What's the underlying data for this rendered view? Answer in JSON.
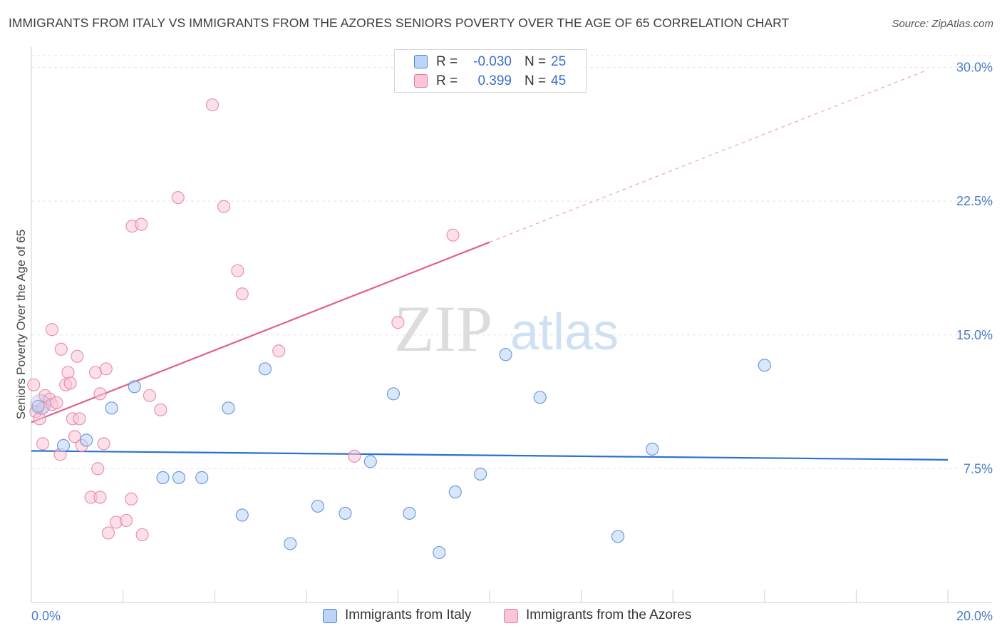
{
  "header": {
    "title": "IMMIGRANTS FROM ITALY VS IMMIGRANTS FROM THE AZORES SENIORS POVERTY OVER THE AGE OF 65 CORRELATION CHART",
    "source": "Source: ZipAtlas.com"
  },
  "watermark": {
    "zip": "ZIP",
    "atlas": "atlas"
  },
  "stats_legend": [
    {
      "r_label": "R =",
      "r_value": "-0.030",
      "n_label": "N =",
      "n_value": "25",
      "color": "#4a86d8",
      "fill": "#bcd4f5"
    },
    {
      "r_label": "R =",
      "r_value": "0.399",
      "n_label": "N =",
      "n_value": "45",
      "color": "#e5799e",
      "fill": "#f8c6d6"
    }
  ],
  "bottom_legend": [
    {
      "label": "Immigrants from Italy",
      "color": "#4a86d8",
      "fill": "#bcd4f5"
    },
    {
      "label": "Immigrants from the Azores",
      "color": "#e5799e",
      "fill": "#f8c6d6"
    }
  ],
  "chart_data": {
    "type": "scatter",
    "title": "IMMIGRANTS FROM ITALY VS IMMIGRANTS FROM THE AZORES SENIORS POVERTY OVER THE AGE OF 65 CORRELATION CHART",
    "xlabel": "",
    "ylabel": "Seniors Poverty Over the Age of 65",
    "xlim": [
      0,
      20
    ],
    "ylim": [
      0,
      30.9
    ],
    "x_tick_labels": [
      {
        "value": 0,
        "label": "0.0%"
      },
      {
        "value": 20,
        "label": "20.0%"
      }
    ],
    "y_tick_labels": [
      {
        "value": 7.5,
        "label": "7.5%"
      },
      {
        "value": 15,
        "label": "15.0%"
      },
      {
        "value": 22.5,
        "label": "22.5%"
      },
      {
        "value": 30,
        "label": "30.0%"
      }
    ],
    "x_minor_ticks": [
      2,
      4,
      6,
      8,
      10,
      12,
      14,
      16,
      18,
      20
    ],
    "grid": true,
    "series": [
      {
        "name": "Immigrants from Italy",
        "color": "#4a86d8",
        "fill": "#bcd4f5",
        "points": [
          [
            0.15,
            11.0
          ],
          [
            0.7,
            8.8
          ],
          [
            1.2,
            9.1
          ],
          [
            1.75,
            10.9
          ],
          [
            2.25,
            12.1
          ],
          [
            2.87,
            7.0
          ],
          [
            3.22,
            7.0
          ],
          [
            3.72,
            7.0
          ],
          [
            4.3,
            10.9
          ],
          [
            4.6,
            4.9
          ],
          [
            5.1,
            13.1
          ],
          [
            5.65,
            3.3
          ],
          [
            6.25,
            5.4
          ],
          [
            6.85,
            5.0
          ],
          [
            7.4,
            7.9
          ],
          [
            7.9,
            11.7
          ],
          [
            8.25,
            5.0
          ],
          [
            8.9,
            2.8
          ],
          [
            9.25,
            6.2
          ],
          [
            9.8,
            7.2
          ],
          [
            10.35,
            13.9
          ],
          [
            11.1,
            11.5
          ],
          [
            12.8,
            3.7
          ],
          [
            13.55,
            8.6
          ],
          [
            16.0,
            13.3
          ]
        ],
        "trendline": {
          "x": [
            0,
            20
          ],
          "y": [
            8.5,
            8.0
          ],
          "style": "solid"
        }
      },
      {
        "name": "Immigrants from the Azores",
        "color": "#e5799e",
        "fill": "#f8c6d6",
        "points": [
          [
            0.05,
            12.2
          ],
          [
            0.1,
            10.7
          ],
          [
            0.18,
            10.3
          ],
          [
            0.25,
            10.9
          ],
          [
            0.3,
            11.6
          ],
          [
            0.25,
            8.9
          ],
          [
            0.4,
            11.4
          ],
          [
            0.45,
            11.1
          ],
          [
            0.55,
            11.2
          ],
          [
            0.45,
            15.3
          ],
          [
            0.65,
            14.2
          ],
          [
            0.63,
            8.3
          ],
          [
            0.75,
            12.2
          ],
          [
            0.8,
            12.9
          ],
          [
            0.85,
            12.3
          ],
          [
            0.9,
            10.3
          ],
          [
            0.95,
            9.3
          ],
          [
            1.0,
            13.8
          ],
          [
            1.05,
            10.3
          ],
          [
            1.1,
            8.8
          ],
          [
            1.3,
            5.9
          ],
          [
            1.4,
            12.9
          ],
          [
            1.45,
            7.5
          ],
          [
            1.5,
            5.9
          ],
          [
            1.5,
            11.7
          ],
          [
            1.58,
            8.9
          ],
          [
            1.63,
            13.1
          ],
          [
            1.68,
            3.9
          ],
          [
            1.85,
            4.5
          ],
          [
            2.07,
            4.6
          ],
          [
            2.18,
            5.8
          ],
          [
            2.2,
            21.1
          ],
          [
            2.4,
            21.2
          ],
          [
            2.42,
            3.8
          ],
          [
            2.58,
            11.6
          ],
          [
            2.82,
            10.8
          ],
          [
            3.2,
            22.7
          ],
          [
            3.95,
            27.9
          ],
          [
            4.2,
            22.2
          ],
          [
            4.5,
            18.6
          ],
          [
            4.6,
            17.3
          ],
          [
            5.4,
            14.1
          ],
          [
            7.05,
            8.2
          ],
          [
            8.0,
            15.7
          ],
          [
            9.2,
            20.6
          ]
        ],
        "trendline": {
          "x": [
            0,
            10
          ],
          "y": [
            10.1,
            20.2
          ],
          "style": "solid"
        },
        "trendline_extension": {
          "x": [
            10,
            19.5
          ],
          "y": [
            20.2,
            29.8
          ],
          "style": "dashed"
        }
      }
    ]
  }
}
